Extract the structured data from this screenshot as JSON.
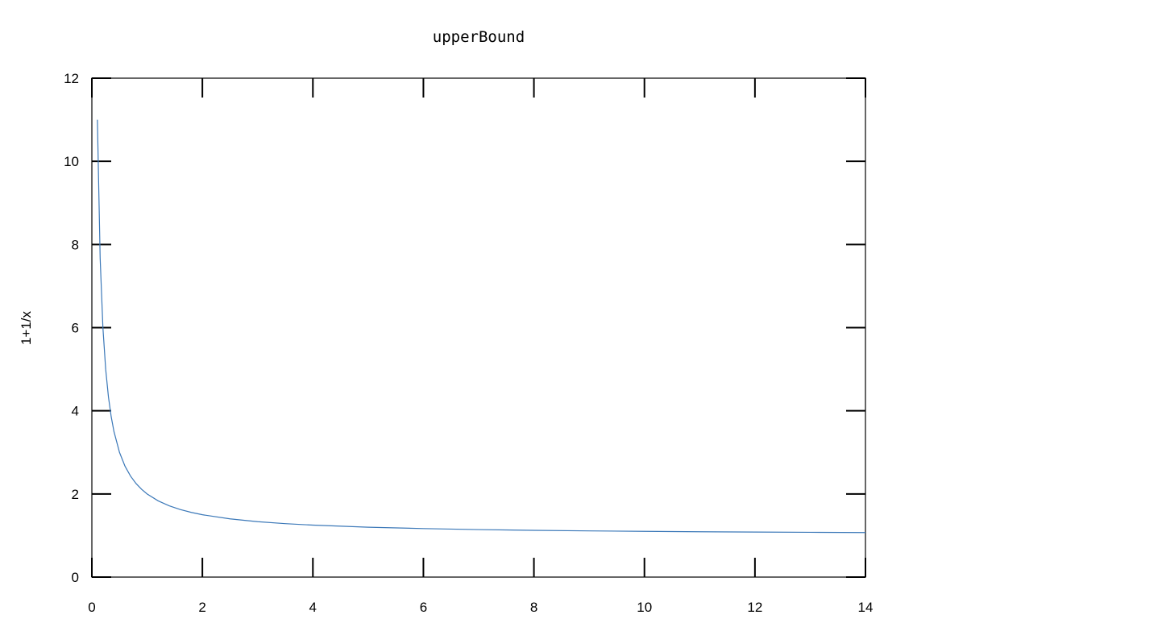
{
  "chart_data": {
    "type": "line",
    "title": "upperBound",
    "xlabel": "",
    "ylabel": "1+1/x",
    "xlim": [
      0,
      14
    ],
    "ylim": [
      0,
      12
    ],
    "xticks": [
      0,
      2,
      4,
      6,
      8,
      10,
      12,
      14
    ],
    "yticks": [
      0,
      2,
      4,
      6,
      8,
      10,
      12
    ],
    "grid": false,
    "series": [
      {
        "color": "#3b78b8",
        "x": [
          0.1,
          0.15,
          0.2,
          0.25,
          0.3,
          0.35,
          0.4,
          0.5,
          0.6,
          0.7,
          0.8,
          0.9,
          1,
          1.2,
          1.4,
          1.6,
          1.8,
          2,
          2.5,
          3,
          3.5,
          4,
          5,
          6,
          7,
          8,
          9,
          10,
          11,
          12,
          13,
          14
        ],
        "y": [
          11,
          7.6667,
          6,
          5,
          4.3333,
          3.8571,
          3.5,
          3,
          2.6667,
          2.4286,
          2.25,
          2.1111,
          2,
          1.8333,
          1.7143,
          1.625,
          1.5556,
          1.5,
          1.4,
          1.3333,
          1.2857,
          1.25,
          1.2,
          1.1667,
          1.1429,
          1.125,
          1.1111,
          1.1,
          1.0909,
          1.0833,
          1.0769,
          1.0714
        ]
      }
    ]
  }
}
